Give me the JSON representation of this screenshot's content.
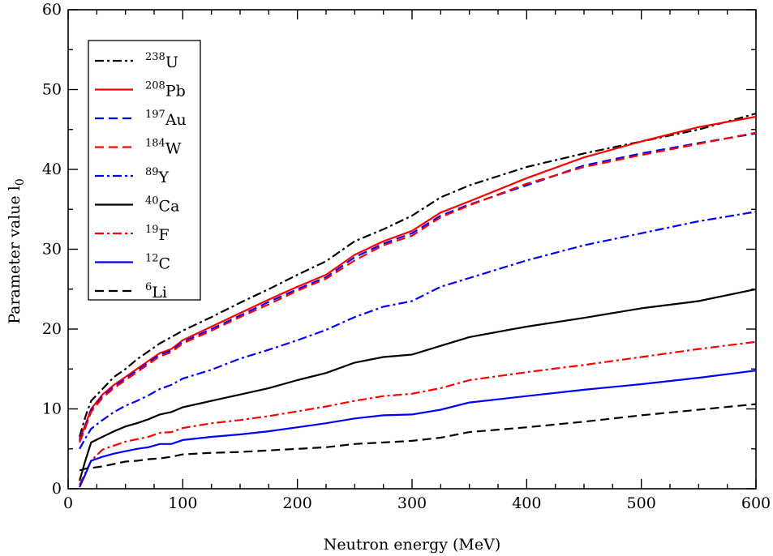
{
  "chart_data": {
    "type": "line",
    "title": "",
    "xlabel": "Neutron energy (MeV)",
    "ylabel": "Parameter value l",
    "ylabel_subscript": "0",
    "xlim": [
      0,
      600
    ],
    "ylim": [
      0,
      60
    ],
    "xticks": [
      0,
      100,
      200,
      300,
      400,
      500,
      600
    ],
    "yticks": [
      0,
      10,
      20,
      30,
      40,
      50,
      60
    ],
    "grid": false,
    "legend_position": "top-left",
    "series": [
      {
        "name": "U",
        "mass": "238",
        "color": "#000000",
        "dash": "dashdot",
        "x": [
          10,
          15,
          20,
          30,
          40,
          50,
          60,
          70,
          80,
          90,
          100,
          125,
          150,
          175,
          200,
          225,
          250,
          275,
          300,
          325,
          350,
          400,
          450,
          500,
          550,
          600
        ],
        "y": [
          6.5,
          9.0,
          11.0,
          12.5,
          14.0,
          15.0,
          16.2,
          17.2,
          18.2,
          19.0,
          19.8,
          21.5,
          23.3,
          25.0,
          26.8,
          28.5,
          31.0,
          32.5,
          34.2,
          36.5,
          38.0,
          40.3,
          42.0,
          43.5,
          45.0,
          47.0
        ]
      },
      {
        "name": "Pb",
        "mass": "208",
        "color": "#ff0000",
        "dash": "solid",
        "x": [
          10,
          15,
          20,
          30,
          40,
          50,
          60,
          70,
          80,
          90,
          100,
          125,
          150,
          175,
          200,
          225,
          250,
          275,
          300,
          325,
          350,
          400,
          450,
          500,
          550,
          600
        ],
        "y": [
          6.2,
          8.0,
          10.0,
          11.8,
          13.0,
          14.0,
          15.0,
          16.0,
          17.0,
          17.5,
          18.6,
          20.3,
          22.0,
          23.7,
          25.3,
          26.8,
          29.3,
          31.0,
          32.3,
          34.6,
          36.0,
          38.9,
          41.5,
          43.5,
          45.3,
          46.6
        ]
      },
      {
        "name": "Au",
        "mass": "197",
        "color": "#0000ff",
        "dash": "dashed",
        "x": [
          10,
          15,
          20,
          30,
          40,
          50,
          60,
          70,
          80,
          90,
          100,
          125,
          150,
          175,
          200,
          225,
          250,
          275,
          300,
          325,
          350,
          400,
          450,
          500,
          550,
          600
        ],
        "y": [
          6.0,
          7.8,
          9.8,
          11.6,
          12.8,
          13.8,
          14.8,
          15.8,
          16.8,
          17.3,
          18.4,
          20.0,
          21.7,
          23.4,
          25.0,
          26.5,
          29.0,
          30.7,
          32.0,
          34.2,
          35.6,
          38.0,
          40.5,
          42.0,
          43.3,
          44.5
        ]
      },
      {
        "name": "W",
        "mass": "184",
        "color": "#ff0000",
        "dash": "dashed",
        "x": [
          10,
          15,
          20,
          30,
          40,
          50,
          60,
          70,
          80,
          90,
          100,
          125,
          150,
          175,
          200,
          225,
          250,
          275,
          300,
          325,
          350,
          400,
          450,
          500,
          550,
          600
        ],
        "y": [
          5.8,
          7.6,
          9.6,
          11.4,
          12.6,
          13.6,
          14.6,
          15.6,
          16.6,
          17.1,
          18.2,
          19.8,
          21.5,
          23.1,
          24.8,
          26.3,
          28.6,
          30.5,
          31.7,
          34.0,
          35.5,
          38.2,
          40.3,
          41.8,
          43.2,
          44.6
        ]
      },
      {
        "name": "Y",
        "mass": "89",
        "color": "#0000ff",
        "dash": "dashdot",
        "x": [
          10,
          15,
          20,
          30,
          40,
          50,
          60,
          70,
          80,
          90,
          100,
          125,
          150,
          175,
          200,
          225,
          250,
          275,
          300,
          325,
          350,
          400,
          450,
          500,
          550,
          600
        ],
        "y": [
          5.0,
          6.3,
          7.5,
          8.6,
          9.6,
          10.4,
          11.0,
          11.7,
          12.5,
          13.0,
          13.8,
          14.9,
          16.3,
          17.4,
          18.6,
          19.9,
          21.5,
          22.8,
          23.5,
          25.3,
          26.4,
          28.6,
          30.5,
          32.0,
          33.5,
          34.7
        ]
      },
      {
        "name": "Ca",
        "mass": "40",
        "color": "#000000",
        "dash": "solid",
        "x": [
          10,
          15,
          20,
          30,
          40,
          50,
          60,
          70,
          80,
          90,
          100,
          125,
          150,
          175,
          200,
          225,
          250,
          275,
          300,
          325,
          350,
          400,
          450,
          500,
          550,
          600
        ],
        "y": [
          1.0,
          3.5,
          5.8,
          6.5,
          7.2,
          7.8,
          8.2,
          8.7,
          9.3,
          9.6,
          10.2,
          11.0,
          11.8,
          12.6,
          13.6,
          14.5,
          15.8,
          16.5,
          16.8,
          17.9,
          19.0,
          20.3,
          21.4,
          22.6,
          23.5,
          25.0
        ]
      },
      {
        "name": "F",
        "mass": "19",
        "color": "#ff0000",
        "dash": "dashdot",
        "x": [
          10,
          15,
          20,
          30,
          40,
          50,
          60,
          70,
          80,
          90,
          100,
          125,
          150,
          175,
          200,
          225,
          250,
          275,
          300,
          325,
          350,
          400,
          450,
          500,
          550,
          600
        ],
        "y": [
          0.5,
          2.0,
          3.5,
          4.9,
          5.4,
          5.9,
          6.2,
          6.5,
          7.0,
          7.1,
          7.6,
          8.2,
          8.6,
          9.1,
          9.7,
          10.3,
          11.0,
          11.6,
          11.9,
          12.6,
          13.6,
          14.6,
          15.5,
          16.5,
          17.5,
          18.4
        ]
      },
      {
        "name": "C",
        "mass": "12",
        "color": "#0000ff",
        "dash": "solid",
        "x": [
          10,
          15,
          20,
          30,
          40,
          50,
          60,
          70,
          80,
          90,
          100,
          125,
          150,
          175,
          200,
          225,
          250,
          275,
          300,
          325,
          350,
          400,
          450,
          500,
          550,
          600
        ],
        "y": [
          0.2,
          1.8,
          3.5,
          4.0,
          4.4,
          4.7,
          5.0,
          5.2,
          5.6,
          5.6,
          6.1,
          6.5,
          6.8,
          7.2,
          7.7,
          8.2,
          8.8,
          9.2,
          9.3,
          9.9,
          10.8,
          11.6,
          12.4,
          13.1,
          13.9,
          14.8
        ]
      },
      {
        "name": "Li",
        "mass": "6",
        "color": "#000000",
        "dash": "dashed",
        "x": [
          10,
          15,
          20,
          30,
          40,
          50,
          60,
          70,
          80,
          90,
          100,
          125,
          150,
          175,
          200,
          225,
          250,
          275,
          300,
          325,
          350,
          400,
          450,
          500,
          550,
          600
        ],
        "y": [
          2.3,
          2.5,
          2.6,
          2.8,
          3.1,
          3.4,
          3.5,
          3.7,
          3.8,
          4.0,
          4.3,
          4.5,
          4.6,
          4.8,
          5.0,
          5.2,
          5.6,
          5.8,
          6.0,
          6.4,
          7.1,
          7.7,
          8.4,
          9.2,
          9.9,
          10.6
        ]
      }
    ]
  }
}
